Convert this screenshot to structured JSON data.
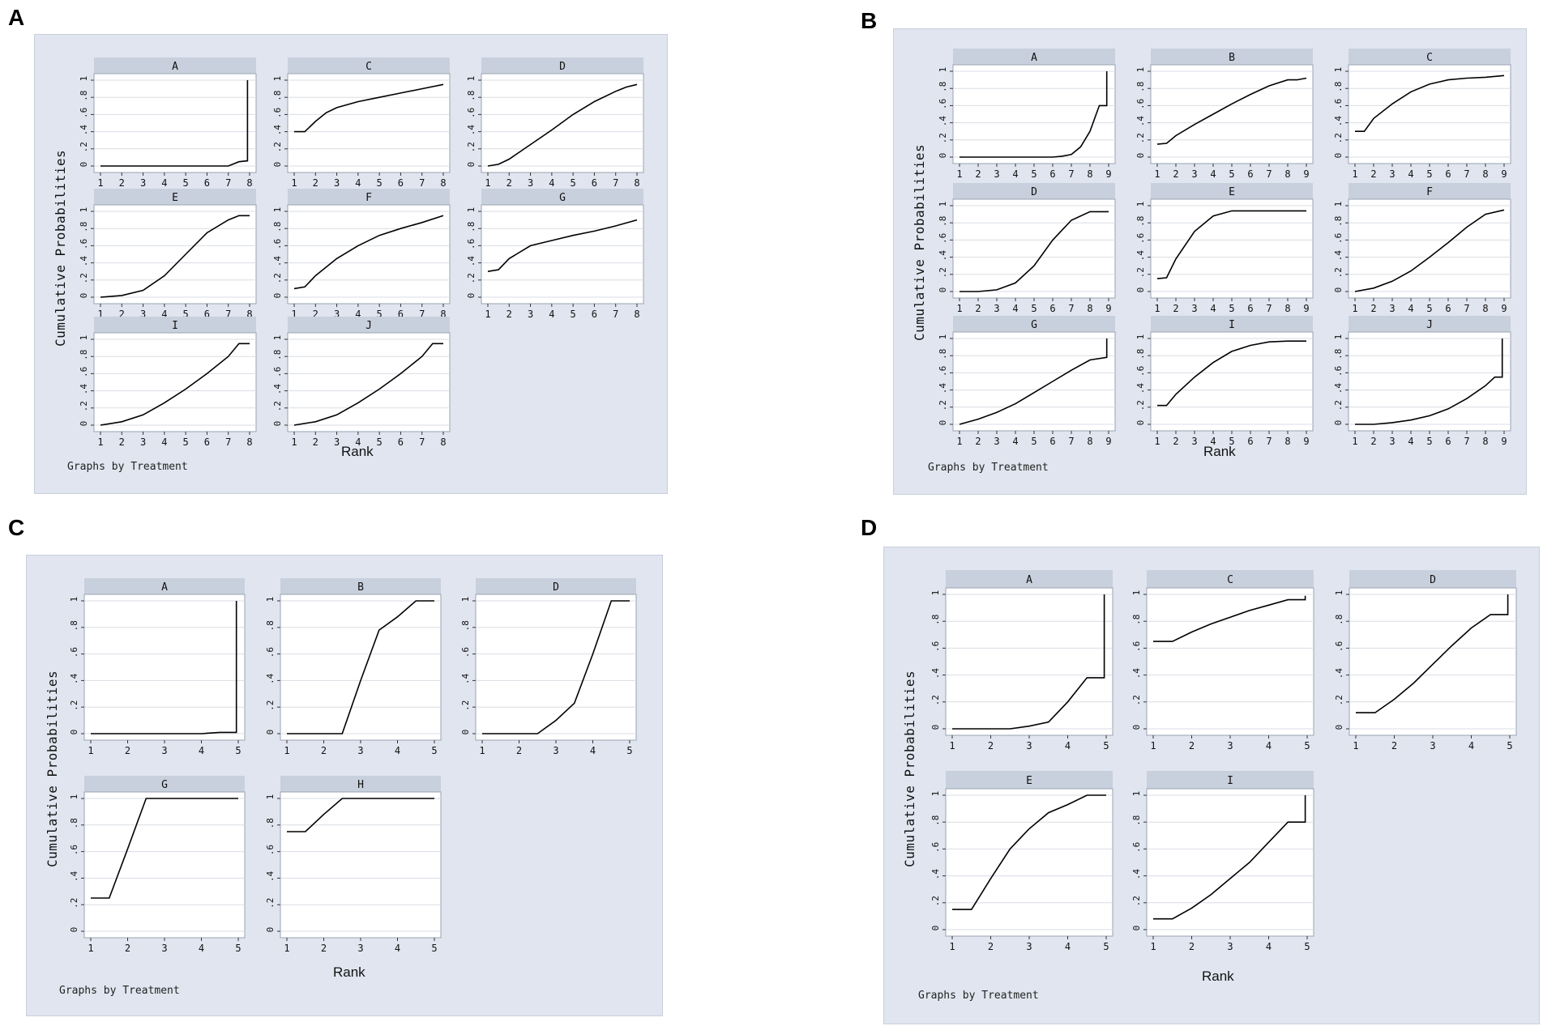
{
  "figure": {
    "panels": [
      {
        "letter": "A",
        "ylabel": "Cumulative Probabilities",
        "xlabel": "Rank",
        "footer": "Graphs by Treatment"
      },
      {
        "letter": "B",
        "ylabel": "Cumulative Probabilities",
        "xlabel": "Rank",
        "footer": "Graphs by Treatment"
      },
      {
        "letter": "C",
        "ylabel": "Cumulative Probabilities",
        "xlabel": "Rank",
        "footer": "Graphs by Treatment"
      },
      {
        "letter": "D",
        "ylabel": "Cumulative Probabilities",
        "xlabel": "Rank",
        "footer": "Graphs by Treatment"
      }
    ]
  },
  "colors": {
    "panel_bg": "#e0e5ef",
    "header_bg": "#c9d0dd",
    "plot_bg": "#ffffff",
    "line": "#000000",
    "grid": "#d9dde4"
  },
  "chart_data": [
    {
      "panel": "A",
      "type": "line",
      "xlabel": "Rank",
      "ylabel": "Cumulative Probabilities",
      "xlim": [
        1,
        8
      ],
      "ylim": [
        0,
        1
      ],
      "yticks": [
        "0",
        ".2",
        ".4",
        ".6",
        ".8",
        "1"
      ],
      "xticks": [
        "1",
        "2",
        "3",
        "4",
        "5",
        "6",
        "7",
        "8"
      ],
      "series": [
        {
          "name": "A",
          "x": [
            1,
            2,
            3,
            4,
            5,
            6,
            7,
            7.5,
            7.9,
            7.9
          ],
          "y": [
            0,
            0,
            0,
            0,
            0,
            0,
            0,
            0.05,
            0.06,
            1
          ]
        },
        {
          "name": "C",
          "x": [
            1,
            1.5,
            2,
            2.5,
            3,
            4,
            5,
            6,
            7,
            8
          ],
          "y": [
            0.4,
            0.4,
            0.52,
            0.62,
            0.68,
            0.75,
            0.8,
            0.85,
            0.9,
            0.95
          ]
        },
        {
          "name": "D",
          "x": [
            1,
            1.5,
            2,
            3,
            4,
            5,
            6,
            7,
            7.5,
            8
          ],
          "y": [
            0,
            0.02,
            0.08,
            0.25,
            0.42,
            0.6,
            0.75,
            0.87,
            0.92,
            0.95
          ]
        },
        {
          "name": "E",
          "x": [
            1,
            2,
            3,
            4,
            5,
            6,
            7,
            7.5,
            8
          ],
          "y": [
            0,
            0.02,
            0.08,
            0.25,
            0.5,
            0.75,
            0.9,
            0.95,
            0.95
          ]
        },
        {
          "name": "F",
          "x": [
            1,
            1.5,
            2,
            3,
            4,
            5,
            6,
            7,
            8
          ],
          "y": [
            0.1,
            0.12,
            0.25,
            0.45,
            0.6,
            0.72,
            0.8,
            0.87,
            0.95
          ]
        },
        {
          "name": "G",
          "x": [
            1,
            1.5,
            2,
            3,
            4,
            5,
            6,
            7,
            8
          ],
          "y": [
            0.3,
            0.32,
            0.45,
            0.6,
            0.66,
            0.72,
            0.77,
            0.83,
            0.9
          ]
        },
        {
          "name": "I",
          "x": [
            1,
            2,
            3,
            4,
            5,
            6,
            7,
            7.5,
            8
          ],
          "y": [
            0,
            0.04,
            0.12,
            0.26,
            0.42,
            0.6,
            0.8,
            0.95,
            0.95
          ]
        },
        {
          "name": "J",
          "x": [
            1,
            2,
            3,
            4,
            5,
            6,
            7,
            7.5,
            8
          ],
          "y": [
            0,
            0.04,
            0.12,
            0.26,
            0.42,
            0.6,
            0.8,
            0.95,
            0.95
          ]
        }
      ]
    },
    {
      "panel": "B",
      "type": "line",
      "xlabel": "Rank",
      "ylabel": "Cumulative Probabilities",
      "xlim": [
        1,
        9
      ],
      "ylim": [
        0,
        1
      ],
      "yticks": [
        "0",
        ".2",
        ".4",
        ".6",
        ".8",
        "1"
      ],
      "xticks": [
        "1",
        "2",
        "3",
        "4",
        "5",
        "6",
        "7",
        "8",
        "9"
      ],
      "series": [
        {
          "name": "A",
          "x": [
            1,
            2,
            3,
            4,
            5,
            6,
            6.5,
            7,
            7.5,
            8,
            8.5,
            8.9,
            8.9
          ],
          "y": [
            0,
            0,
            0,
            0,
            0,
            0,
            0.01,
            0.03,
            0.12,
            0.3,
            0.6,
            0.6,
            1
          ]
        },
        {
          "name": "B",
          "x": [
            1,
            1.5,
            2,
            3,
            4,
            5,
            6,
            7,
            8,
            8.5,
            9
          ],
          "y": [
            0.15,
            0.16,
            0.25,
            0.38,
            0.5,
            0.62,
            0.73,
            0.83,
            0.9,
            0.9,
            0.92
          ]
        },
        {
          "name": "C",
          "x": [
            1,
            1.5,
            2,
            3,
            4,
            5,
            6,
            7,
            8,
            9
          ],
          "y": [
            0.3,
            0.3,
            0.45,
            0.62,
            0.76,
            0.85,
            0.9,
            0.92,
            0.93,
            0.95
          ]
        },
        {
          "name": "D",
          "x": [
            1,
            2,
            3,
            4,
            5,
            6,
            7,
            8,
            9
          ],
          "y": [
            0,
            0,
            0.02,
            0.1,
            0.3,
            0.6,
            0.83,
            0.93,
            0.93
          ]
        },
        {
          "name": "E",
          "x": [
            1,
            1.5,
            2,
            3,
            4,
            5,
            6,
            7,
            8,
            9
          ],
          "y": [
            0.15,
            0.16,
            0.38,
            0.7,
            0.88,
            0.94,
            0.94,
            0.94,
            0.94,
            0.94
          ]
        },
        {
          "name": "F",
          "x": [
            1,
            2,
            3,
            4,
            5,
            6,
            7,
            8,
            9
          ],
          "y": [
            0,
            0.04,
            0.12,
            0.24,
            0.4,
            0.57,
            0.75,
            0.9,
            0.95
          ]
        },
        {
          "name": "G",
          "x": [
            1,
            2,
            3,
            4,
            5,
            6,
            7,
            8,
            8.9,
            8.9
          ],
          "y": [
            0,
            0.06,
            0.14,
            0.24,
            0.37,
            0.5,
            0.63,
            0.75,
            0.78,
            1
          ]
        },
        {
          "name": "I",
          "x": [
            1,
            1.5,
            2,
            3,
            4,
            5,
            6,
            7,
            8,
            9
          ],
          "y": [
            0.22,
            0.22,
            0.35,
            0.55,
            0.72,
            0.85,
            0.92,
            0.96,
            0.97,
            0.97
          ]
        },
        {
          "name": "J",
          "x": [
            1,
            2,
            3,
            4,
            5,
            6,
            7,
            8,
            8.5,
            8.9,
            8.9
          ],
          "y": [
            0,
            0,
            0.02,
            0.05,
            0.1,
            0.18,
            0.3,
            0.45,
            0.55,
            0.55,
            1
          ]
        }
      ]
    },
    {
      "panel": "C",
      "type": "line",
      "xlabel": "Rank",
      "ylabel": "Cumulative Probabilities",
      "xlim": [
        1,
        5
      ],
      "ylim": [
        0,
        1
      ],
      "yticks": [
        "0",
        ".2",
        ".4",
        ".6",
        ".8",
        "1"
      ],
      "xticks": [
        "1",
        "2",
        "3",
        "4",
        "5"
      ],
      "series": [
        {
          "name": "A",
          "x": [
            1,
            2,
            3,
            4,
            4.5,
            4.95,
            4.95
          ],
          "y": [
            0,
            0,
            0,
            0,
            0.01,
            0.01,
            1
          ]
        },
        {
          "name": "B",
          "x": [
            1,
            2,
            2.5,
            3,
            3.5,
            4,
            4.5,
            5
          ],
          "y": [
            0,
            0,
            0,
            0.4,
            0.78,
            0.88,
            1,
            1
          ]
        },
        {
          "name": "D",
          "x": [
            1,
            2,
            2.5,
            3,
            3.5,
            4,
            4.5,
            5
          ],
          "y": [
            0,
            0,
            0,
            0.1,
            0.23,
            0.6,
            1,
            1
          ]
        },
        {
          "name": "G",
          "x": [
            1,
            1.5,
            2,
            2.5,
            3,
            4,
            5
          ],
          "y": [
            0.25,
            0.25,
            0.62,
            1,
            1,
            1,
            1
          ]
        },
        {
          "name": "H",
          "x": [
            1,
            1.5,
            2,
            2.5,
            3,
            4,
            5
          ],
          "y": [
            0.75,
            0.75,
            0.88,
            1,
            1,
            1,
            1
          ]
        }
      ]
    },
    {
      "panel": "D",
      "type": "line",
      "xlabel": "Rank",
      "ylabel": "Cumulative Probabilities",
      "xlim": [
        1,
        5
      ],
      "ylim": [
        0,
        1
      ],
      "yticks": [
        "0",
        ".2",
        ".4",
        ".6",
        ".8",
        "1"
      ],
      "xticks": [
        "1",
        "2",
        "3",
        "4",
        "5"
      ],
      "series": [
        {
          "name": "A",
          "x": [
            1,
            2,
            2.5,
            3,
            3.5,
            4,
            4.5,
            4.95,
            4.95
          ],
          "y": [
            0,
            0,
            0,
            0.02,
            0.05,
            0.2,
            0.38,
            0.38,
            1
          ]
        },
        {
          "name": "C",
          "x": [
            1,
            1.5,
            2,
            2.5,
            3,
            3.5,
            4,
            4.5,
            4.95,
            4.95
          ],
          "y": [
            0.65,
            0.65,
            0.72,
            0.78,
            0.83,
            0.88,
            0.92,
            0.96,
            0.96,
            0.99
          ]
        },
        {
          "name": "D",
          "x": [
            1,
            1.5,
            2,
            2.5,
            3,
            3.5,
            4,
            4.5,
            4.95,
            4.95
          ],
          "y": [
            0.12,
            0.12,
            0.22,
            0.34,
            0.48,
            0.62,
            0.75,
            0.85,
            0.85,
            1
          ]
        },
        {
          "name": "E",
          "x": [
            1,
            1.5,
            2,
            2.5,
            3,
            3.5,
            4,
            4.5,
            5
          ],
          "y": [
            0.15,
            0.15,
            0.38,
            0.6,
            0.75,
            0.87,
            0.93,
            1,
            1
          ]
        },
        {
          "name": "I",
          "x": [
            1,
            1.5,
            2,
            2.5,
            3,
            3.5,
            4,
            4.5,
            4.95,
            4.95
          ],
          "y": [
            0.08,
            0.08,
            0.16,
            0.26,
            0.38,
            0.5,
            0.65,
            0.8,
            0.8,
            1
          ]
        }
      ]
    }
  ]
}
